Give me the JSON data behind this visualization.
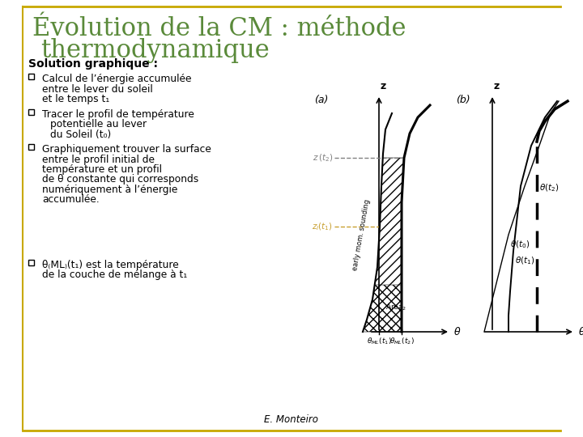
{
  "title_line1": "Évolution de la CM : méthode",
  "title_line2": "thermodynamique",
  "title_color": "#5a8a3a",
  "title_fontsize": 22,
  "subtitle": "Solution graphique :",
  "subtitle_fontsize": 10,
  "bullet_items": [
    "Calcul de l’énergie accumulée\nentre le lever du soleil\net le temps t",
    "Tracer le profil de température\npotentielle au lever\ndu Soleil (t",
    "Graphiquement trouver la surface\nentre le profil initial de\nttempérature et un profil\nde θ constante qui corresponds\nnumériquement à l’énergie\naccumulée.",
    "Θ",
    "de la couche de mélange à t"
  ],
  "footer": "E. Monteiro",
  "bg_color": "#ffffff",
  "border_color": "#c8a800",
  "text_color": "#000000"
}
